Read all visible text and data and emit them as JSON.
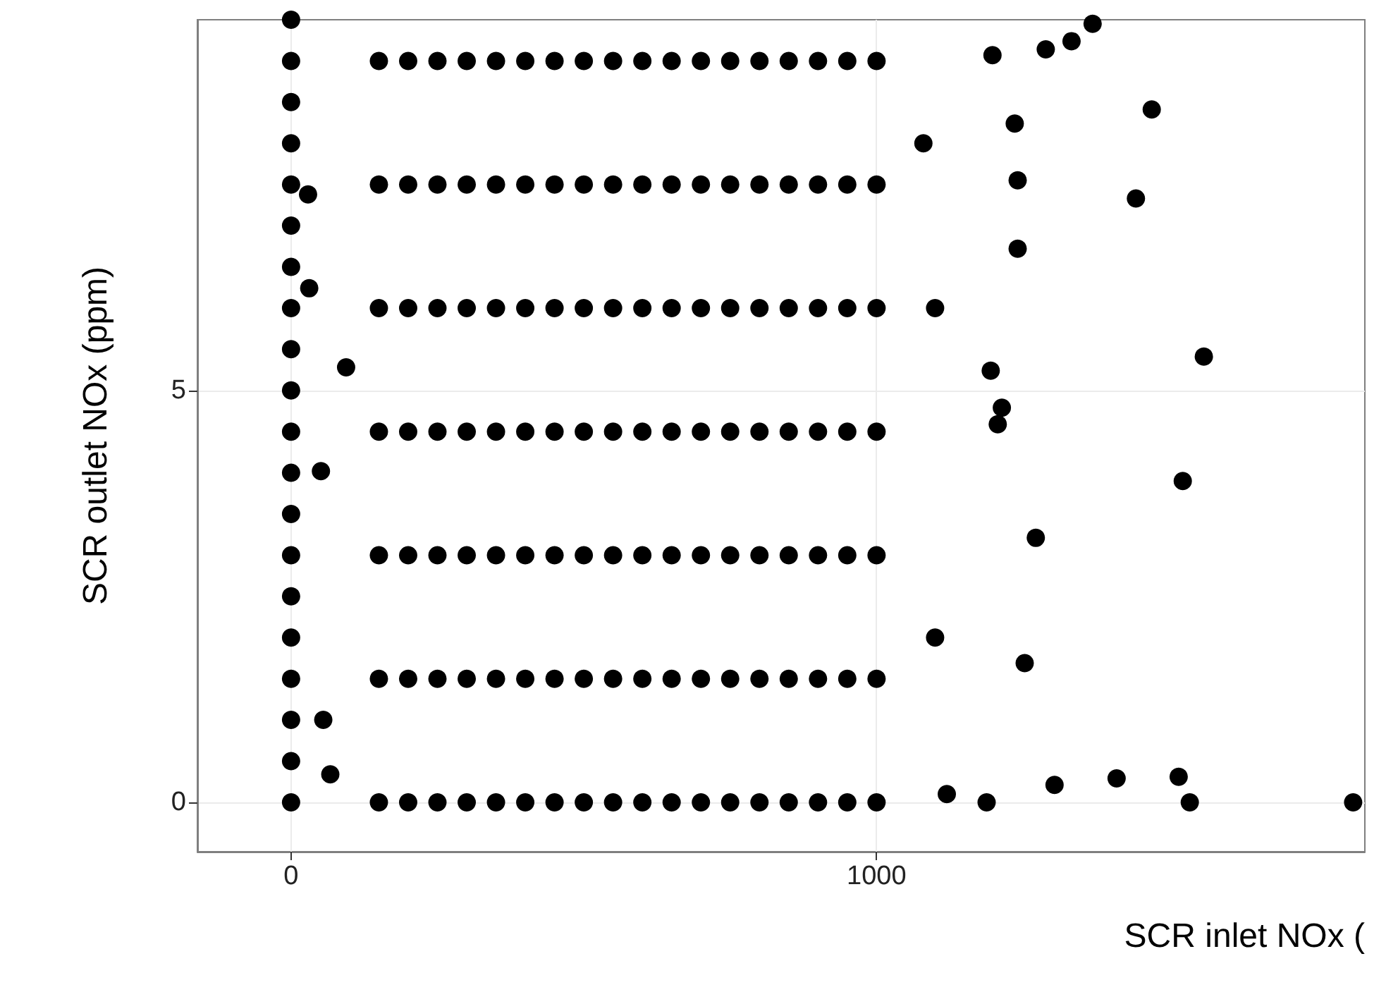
{
  "chart_data": {
    "type": "scatter",
    "xlabel": "SCR inlet NOx (",
    "ylabel": "SCR outlet NOx (ppm)",
    "xlim": [
      -160,
      1834
    ],
    "ylim": [
      -0.6,
      9.5
    ],
    "xticks": [
      0,
      1000
    ],
    "yticks": [
      0,
      5
    ],
    "grid": true,
    "marker": "circle",
    "series": [
      {
        "color": "#000000",
        "x": [
          150,
          200,
          250,
          300,
          350,
          400,
          450,
          500,
          550,
          600,
          650,
          700,
          750,
          800,
          850,
          900,
          950,
          1000,
          150,
          200,
          250,
          300,
          350,
          400,
          450,
          500,
          550,
          600,
          650,
          700,
          750,
          800,
          850,
          900,
          950,
          1000,
          150,
          200,
          250,
          300,
          350,
          400,
          450,
          500,
          550,
          600,
          650,
          700,
          750,
          800,
          850,
          900,
          950,
          1000,
          150,
          200,
          250,
          300,
          350,
          400,
          450,
          500,
          550,
          600,
          650,
          700,
          750,
          800,
          850,
          900,
          950,
          1000,
          150,
          200,
          250,
          300,
          350,
          400,
          450,
          500,
          550,
          600,
          650,
          700,
          750,
          800,
          850,
          900,
          950,
          1000,
          150,
          200,
          250,
          300,
          350,
          400,
          450,
          500,
          550,
          600,
          650,
          700,
          750,
          800,
          850,
          900,
          950,
          1000,
          150,
          200,
          250,
          300,
          350,
          400,
          450,
          500,
          550,
          600,
          650,
          700,
          750,
          800,
          850,
          900,
          950,
          1000,
          0,
          0,
          0,
          0,
          0,
          0,
          0,
          0,
          0,
          0,
          0,
          0,
          0,
          0,
          0,
          0,
          0,
          0,
          0,
          0,
          1188,
          1304,
          1410,
          1516,
          1535,
          1814,
          1253,
          1272,
          1523,
          1559,
          1470,
          1443,
          1241,
          1236,
          1198,
          1207,
          1214,
          1195,
          1241,
          1333,
          1369,
          1289,
          31,
          29,
          55,
          67,
          51,
          94,
          1100,
          1100,
          1080,
          1120
        ],
        "values": [
          0,
          0,
          0,
          0,
          0,
          0,
          0,
          0,
          0,
          0,
          0,
          0,
          0,
          0,
          0,
          0,
          0,
          0,
          1.5,
          1.5,
          1.5,
          1.5,
          1.5,
          1.5,
          1.5,
          1.5,
          1.5,
          1.5,
          1.5,
          1.5,
          1.5,
          1.5,
          1.5,
          1.5,
          1.5,
          1.5,
          3,
          3,
          3,
          3,
          3,
          3,
          3,
          3,
          3,
          3,
          3,
          3,
          3,
          3,
          3,
          3,
          3,
          3,
          4.5,
          4.5,
          4.5,
          4.5,
          4.5,
          4.5,
          4.5,
          4.5,
          4.5,
          4.5,
          4.5,
          4.5,
          4.5,
          4.5,
          4.5,
          4.5,
          4.5,
          4.5,
          6,
          6,
          6,
          6,
          6,
          6,
          6,
          6,
          6,
          6,
          6,
          6,
          6,
          6,
          6,
          6,
          6,
          6,
          7.5,
          7.5,
          7.5,
          7.5,
          7.5,
          7.5,
          7.5,
          7.5,
          7.5,
          7.5,
          7.5,
          7.5,
          7.5,
          7.5,
          7.5,
          7.5,
          7.5,
          7.5,
          9,
          9,
          9,
          9,
          9,
          9,
          9,
          9,
          9,
          9,
          9,
          9,
          9,
          9,
          9,
          9,
          9,
          9,
          0,
          0.5,
          1,
          1.5,
          2,
          2.5,
          3,
          3.5,
          4,
          4.5,
          5,
          5.5,
          6,
          6.5,
          7,
          7.5,
          8,
          8.5,
          9,
          9.5,
          0,
          0.21,
          0.29,
          0.31,
          0,
          0,
          1.69,
          3.21,
          3.9,
          5.41,
          8.41,
          7.33,
          6.72,
          8.24,
          9.07,
          4.59,
          4.79,
          5.24,
          7.55,
          9.24,
          9.45,
          9.14,
          6.24,
          7.38,
          1.0,
          0.34,
          4.02,
          5.28,
          2,
          6,
          8,
          0.1
        ]
      }
    ]
  }
}
